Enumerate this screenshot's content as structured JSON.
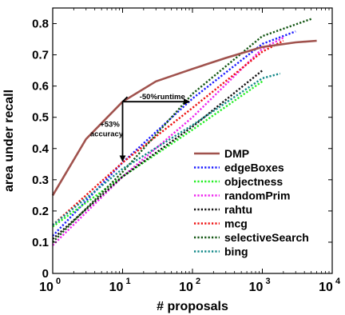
{
  "chart_data": {
    "type": "line",
    "xscale": "log",
    "xlim": [
      1,
      10000
    ],
    "ylim": [
      0,
      0.85
    ],
    "xlabel": "# proposals",
    "ylabel": "area under recall",
    "x_tick_labels": [
      {
        "value": 1,
        "base": "10",
        "exp": "0"
      },
      {
        "value": 10,
        "base": "10",
        "exp": "1"
      },
      {
        "value": 100,
        "base": "10",
        "exp": "2"
      },
      {
        "value": 1000,
        "base": "10",
        "exp": "3"
      },
      {
        "value": 10000,
        "base": "10",
        "exp": "4"
      }
    ],
    "y_ticks": [
      0,
      0.1,
      0.2,
      0.3,
      0.4,
      0.5,
      0.6,
      0.7,
      0.8
    ],
    "y_tick_labels": [
      "0",
      "0.1",
      "0.2",
      "0.3",
      "0.4",
      "0.5",
      "0.6",
      "0.7",
      "0.8"
    ],
    "legend_position": "lower-right",
    "series": [
      {
        "name": "DMP",
        "color": "#a0524d",
        "style": "solid",
        "x": [
          1,
          3,
          10,
          30,
          100,
          300,
          1000,
          3000,
          6000
        ],
        "y": [
          0.25,
          0.43,
          0.55,
          0.615,
          0.655,
          0.69,
          0.725,
          0.74,
          0.745
        ]
      },
      {
        "name": "edgeBoxes",
        "color": "#1a1aff",
        "style": "dotted",
        "x": [
          1,
          10,
          100,
          1000,
          3000
        ],
        "y": [
          0.12,
          0.355,
          0.56,
          0.735,
          0.775
        ]
      },
      {
        "name": "objectness",
        "color": "#22ee22",
        "style": "dotted",
        "x": [
          1,
          10,
          100,
          1000
        ],
        "y": [
          0.15,
          0.31,
          0.46,
          0.615
        ]
      },
      {
        "name": "randomPrim",
        "color": "#ee22ee",
        "style": "dotted",
        "x": [
          1,
          10,
          100,
          1000,
          2000
        ],
        "y": [
          0.09,
          0.31,
          0.5,
          0.72,
          0.755
        ]
      },
      {
        "name": "rahtu",
        "color": "#111111",
        "style": "dotted",
        "x": [
          1,
          10,
          100,
          1000
        ],
        "y": [
          0.11,
          0.31,
          0.47,
          0.65
        ]
      },
      {
        "name": "mcg",
        "color": "#ee1111",
        "style": "dotted",
        "x": [
          1,
          10,
          100,
          1000,
          2000
        ],
        "y": [
          0.155,
          0.355,
          0.53,
          0.71,
          0.745
        ]
      },
      {
        "name": "selectiveSearch",
        "color": "#115511",
        "style": "dotted",
        "x": [
          1,
          10,
          100,
          1000,
          5000
        ],
        "y": [
          0.1,
          0.325,
          0.575,
          0.76,
          0.815
        ]
      },
      {
        "name": "bing",
        "color": "#118888",
        "style": "dotted",
        "x": [
          1,
          10,
          100,
          1000,
          1800
        ],
        "y": [
          0.155,
          0.335,
          0.475,
          0.625,
          0.64
        ]
      }
    ],
    "annotations": {
      "runtime_label": "-50%runtime",
      "accuracy_label_line1": "+53%",
      "accuracy_label_line2": "accuracy",
      "corner_x": 10,
      "arrow_top_y": 0.55,
      "arrow_bottom_y": 0.36,
      "arrow_right_x": 90
    }
  }
}
